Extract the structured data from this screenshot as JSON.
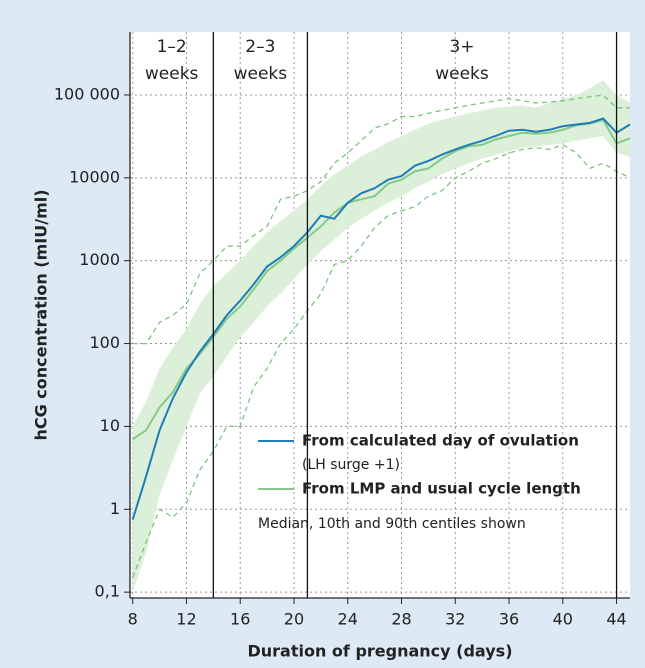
{
  "chart_data": {
    "type": "line",
    "x_label": "Duration of pregnancy (days)",
    "y_label": "hCG concentration (mIU/ml)",
    "xlim": [
      7.8,
      45
    ],
    "ylim": [
      0.085,
      575000
    ],
    "ylog": true,
    "grid": true,
    "xticks": [
      8,
      12,
      16,
      20,
      24,
      28,
      32,
      36,
      40,
      44
    ],
    "yticks": [
      {
        "value": 0.1,
        "label": "0,1"
      },
      1,
      10,
      100,
      1000,
      10000,
      {
        "value": 100000,
        "label": "100 000"
      }
    ],
    "dividers": [
      14,
      21,
      44
    ],
    "periods": [
      [
        "1–2",
        "weeks"
      ],
      [
        "2–3",
        "weeks"
      ],
      [
        "3+",
        "weeks"
      ]
    ],
    "legend": "lower right",
    "note": "Median, 10th and 90th centiles shown",
    "x": [
      8,
      9,
      10,
      11,
      12,
      13,
      14,
      15,
      16,
      17,
      18,
      19,
      20,
      21,
      22,
      23,
      24,
      25,
      26,
      27,
      28,
      29,
      30,
      31,
      32,
      33,
      34,
      35,
      36,
      37,
      38,
      39,
      40,
      41,
      42,
      43,
      44,
      45
    ],
    "series": [
      {
        "name": "From calculated day of ovulation",
        "name_note": "(LH surge +1)",
        "color": "#1f7db8",
        "values": [
          0.75,
          2.5,
          9,
          22,
          45,
          80,
          130,
          220,
          330,
          520,
          850,
          1100,
          1500,
          2200,
          3500,
          3200,
          5000,
          6500,
          7500,
          9500,
          10500,
          14000,
          16000,
          19000,
          22000,
          25000,
          28000,
          32000,
          37000,
          38000,
          36000,
          38000,
          42000,
          44000,
          46000,
          52000,
          35000,
          44000
        ]
      },
      {
        "name": "From LMP and usual cycle length",
        "color": "#86c986",
        "values": [
          7,
          9,
          17,
          26,
          50,
          75,
          120,
          200,
          280,
          450,
          750,
          1000,
          1400,
          1900,
          2600,
          3800,
          5000,
          5500,
          6000,
          8500,
          9500,
          12000,
          13000,
          17000,
          21000,
          24000,
          25000,
          29000,
          32000,
          35000,
          34000,
          35000,
          38000,
          43000,
          45000,
          50000,
          26000,
          30000
        ]
      }
    ],
    "band": {
      "color": "#dcefd8",
      "upper": [
        10,
        20,
        50,
        90,
        150,
        300,
        500,
        700,
        1000,
        1500,
        2200,
        3000,
        4000,
        5500,
        8000,
        11000,
        14000,
        18000,
        22000,
        27000,
        32000,
        38000,
        45000,
        50000,
        55000,
        60000,
        65000,
        70000,
        72000,
        75000,
        70000,
        80000,
        90000,
        100000,
        120000,
        150000,
        100000,
        80000
      ],
      "lower": [
        0.1,
        0.3,
        1.5,
        4,
        10,
        25,
        40,
        70,
        120,
        180,
        280,
        400,
        600,
        900,
        1300,
        1800,
        2500,
        3200,
        4000,
        5000,
        6000,
        7500,
        9000,
        11000,
        13000,
        15000,
        17000,
        19000,
        21000,
        23000,
        24000,
        25000,
        26000,
        28000,
        30000,
        32000,
        20000,
        18000
      ]
    },
    "centiles": {
      "color": "#7dc27d",
      "upper": [
        100,
        100,
        180,
        220,
        300,
        700,
        1000,
        1500,
        1500,
        2000,
        2600,
        5500,
        6000,
        7000,
        9000,
        15000,
        20000,
        28000,
        40000,
        45000,
        55000,
        55000,
        60000,
        65000,
        70000,
        75000,
        80000,
        85000,
        90000,
        85000,
        80000,
        82000,
        85000,
        90000,
        95000,
        100000,
        70000,
        70000
      ],
      "lower": [
        0.15,
        0.4,
        1,
        0.8,
        1.2,
        3,
        5,
        10,
        10,
        30,
        50,
        100,
        150,
        250,
        400,
        900,
        1000,
        1500,
        2500,
        3500,
        4000,
        4500,
        6000,
        7000,
        10000,
        12000,
        15000,
        17000,
        20000,
        22000,
        23000,
        22000,
        25000,
        20000,
        13000,
        15000,
        12000,
        10000
      ]
    }
  }
}
